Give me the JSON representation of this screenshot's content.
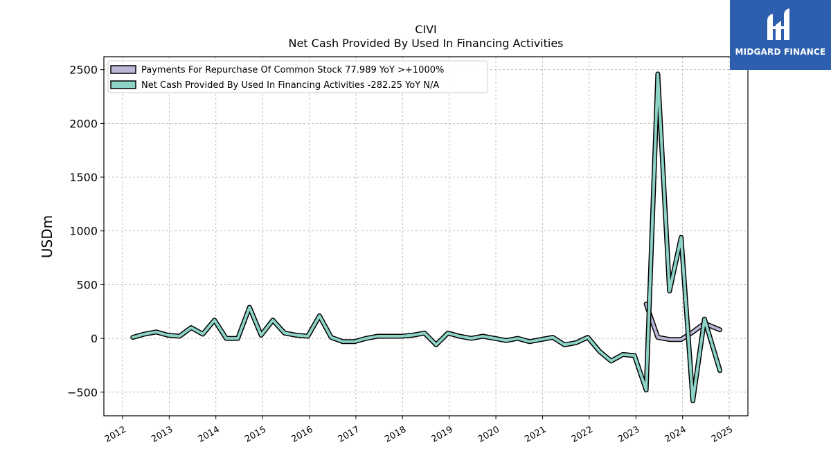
{
  "chart_data": {
    "type": "line",
    "title": "CIVI",
    "subtitle": "Net Cash Provided By Used In Financing Activities",
    "ylabel": "USDm",
    "xlabel": "",
    "xlim": [
      2011.6,
      2025.4
    ],
    "ylim": [
      -720,
      2620
    ],
    "x_ticks": [
      2012,
      2013,
      2014,
      2015,
      2016,
      2017,
      2018,
      2019,
      2020,
      2021,
      2022,
      2023,
      2024,
      2025
    ],
    "y_ticks": [
      -500,
      0,
      500,
      1000,
      1500,
      2000,
      2500
    ],
    "y_tick_labels": [
      "−500",
      "0",
      "500",
      "1000",
      "1500",
      "2000",
      "2500"
    ],
    "grid": true,
    "legend_placement": "top-left",
    "series": [
      {
        "name": "Payments For Repurchase Of Common Stock  77.989 YoY >+1000%",
        "color": "#bcb8d8",
        "x": [
          2023.22,
          2023.47,
          2023.72,
          2023.97,
          2024.22,
          2024.47,
          2024.8
        ],
        "y": [
          320,
          10,
          -10,
          -10,
          60,
          140,
          80
        ]
      },
      {
        "name": "Net Cash Provided By Used In Financing Activities  -282.25 YoY N/A",
        "color": "#8dd3c6",
        "x": [
          2012.22,
          2012.47,
          2012.72,
          2012.97,
          2013.22,
          2013.47,
          2013.72,
          2013.97,
          2014.22,
          2014.47,
          2014.72,
          2014.97,
          2015.22,
          2015.47,
          2015.72,
          2015.97,
          2016.22,
          2016.47,
          2016.72,
          2016.97,
          2017.22,
          2017.47,
          2017.72,
          2017.97,
          2018.22,
          2018.47,
          2018.72,
          2018.97,
          2019.22,
          2019.47,
          2019.72,
          2019.97,
          2020.22,
          2020.47,
          2020.72,
          2020.97,
          2021.22,
          2021.47,
          2021.72,
          2021.97,
          2022.22,
          2022.47,
          2022.72,
          2022.97,
          2023.22,
          2023.47,
          2023.72,
          2023.97,
          2024.22,
          2024.47,
          2024.8
        ],
        "y": [
          10,
          40,
          60,
          30,
          20,
          100,
          40,
          170,
          0,
          0,
          290,
          30,
          170,
          50,
          30,
          20,
          210,
          10,
          -30,
          -30,
          0,
          20,
          20,
          20,
          30,
          50,
          -60,
          50,
          20,
          0,
          20,
          0,
          -20,
          0,
          -30,
          -10,
          10,
          -60,
          -40,
          10,
          -120,
          -210,
          -150,
          -160,
          -480,
          2460,
          440,
          940,
          -580,
          180,
          -300
        ]
      }
    ]
  },
  "logo": {
    "text": "MIDGARD FINANCE"
  }
}
